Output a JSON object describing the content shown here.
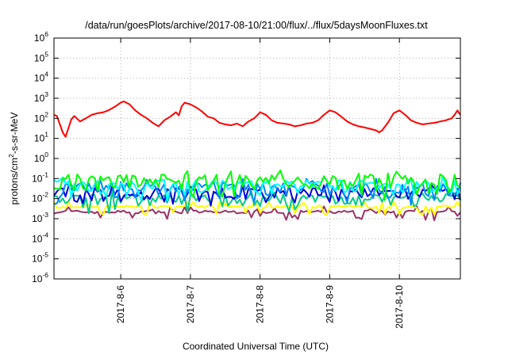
{
  "chart_data": {
    "type": "line",
    "title": "/data/run/goesPlots/archive/2017-08-10/21:00/flux/../flux/5daysMoonFluxes.txt",
    "xlabel": "Coordinated Universal Time (UTC)",
    "ylabel": {
      "pre": "protons/cm",
      "sup": "2",
      "post": "-s-sr-MeV"
    },
    "xlim": [
      "2017-08-05 01:00",
      "2017-08-10 21:00"
    ],
    "yscale": "log",
    "ylim": [
      1e-06,
      1000000.0
    ],
    "grid": true,
    "xticks": [
      {
        "label": "2017-8-6",
        "value": "2017-08-06 00:00"
      },
      {
        "label": "2017-8-7",
        "value": "2017-08-07 00:00"
      },
      {
        "label": "2017-8-8",
        "value": "2017-08-08 00:00"
      },
      {
        "label": "2017-8-9",
        "value": "2017-08-09 00:00"
      },
      {
        "label": "2017-8-10",
        "value": "2017-08-10 00:00"
      }
    ],
    "yticks": [
      {
        "base": "10",
        "exp": "-6",
        "value": 1e-06
      },
      {
        "base": "10",
        "exp": "-5",
        "value": 1e-05
      },
      {
        "base": "10",
        "exp": "-4",
        "value": 0.0001
      },
      {
        "base": "10",
        "exp": "-3",
        "value": 0.001
      },
      {
        "base": "10",
        "exp": "-2",
        "value": 0.01
      },
      {
        "base": "10",
        "exp": "-1",
        "value": 0.1
      },
      {
        "base": "10",
        "exp": "0",
        "value": 1
      },
      {
        "base": "10",
        "exp": "1",
        "value": 10
      },
      {
        "base": "10",
        "exp": "2",
        "value": 100
      },
      {
        "base": "10",
        "exp": "3",
        "value": 1000
      },
      {
        "base": "10",
        "exp": "4",
        "value": 10000
      },
      {
        "base": "10",
        "exp": "5",
        "value": 100000
      },
      {
        "base": "10",
        "exp": "6",
        "value": 1000000
      }
    ],
    "series": [
      {
        "color": "#ff0000",
        "points": [
          [
            "2017-08-05 01:00",
            150
          ],
          [
            "2017-08-05 02:00",
            130
          ],
          [
            "2017-08-05 04:00",
            20
          ],
          [
            "2017-08-05 05:00",
            12
          ],
          [
            "2017-08-05 07:00",
            90
          ],
          [
            "2017-08-05 08:00",
            130
          ],
          [
            "2017-08-05 10:00",
            70
          ],
          [
            "2017-08-05 12:00",
            100
          ],
          [
            "2017-08-05 14:00",
            150
          ],
          [
            "2017-08-05 16:00",
            180
          ],
          [
            "2017-08-05 18:00",
            200
          ],
          [
            "2017-08-05 20:00",
            260
          ],
          [
            "2017-08-05 22:00",
            380
          ],
          [
            "2017-08-06 00:00",
            600
          ],
          [
            "2017-08-06 01:00",
            700
          ],
          [
            "2017-08-06 03:00",
            500
          ],
          [
            "2017-08-06 05:00",
            250
          ],
          [
            "2017-08-06 07:00",
            150
          ],
          [
            "2017-08-06 09:00",
            100
          ],
          [
            "2017-08-06 11:00",
            60
          ],
          [
            "2017-08-06 13:00",
            40
          ],
          [
            "2017-08-06 15:00",
            80
          ],
          [
            "2017-08-06 17:00",
            120
          ],
          [
            "2017-08-06 19:00",
            200
          ],
          [
            "2017-08-06 20:00",
            140
          ],
          [
            "2017-08-06 21:00",
            400
          ],
          [
            "2017-08-06 22:00",
            600
          ],
          [
            "2017-08-07 00:00",
            500
          ],
          [
            "2017-08-07 02:00",
            350
          ],
          [
            "2017-08-07 04:00",
            220
          ],
          [
            "2017-08-07 06:00",
            120
          ],
          [
            "2017-08-07 08:00",
            100
          ],
          [
            "2017-08-07 10:00",
            60
          ],
          [
            "2017-08-07 12:00",
            50
          ],
          [
            "2017-08-07 14:00",
            45
          ],
          [
            "2017-08-07 16:00",
            55
          ],
          [
            "2017-08-07 18:00",
            40
          ],
          [
            "2017-08-07 20:00",
            70
          ],
          [
            "2017-08-07 22:00",
            100
          ],
          [
            "2017-08-08 00:00",
            200
          ],
          [
            "2017-08-08 02:00",
            150
          ],
          [
            "2017-08-08 04:00",
            80
          ],
          [
            "2017-08-08 06:00",
            60
          ],
          [
            "2017-08-08 08:00",
            55
          ],
          [
            "2017-08-08 10:00",
            50
          ],
          [
            "2017-08-08 12:00",
            40
          ],
          [
            "2017-08-08 14:00",
            45
          ],
          [
            "2017-08-08 16:00",
            55
          ],
          [
            "2017-08-08 18:00",
            60
          ],
          [
            "2017-08-08 20:00",
            80
          ],
          [
            "2017-08-08 22:00",
            150
          ],
          [
            "2017-08-09 00:00",
            250
          ],
          [
            "2017-08-09 02:00",
            200
          ],
          [
            "2017-08-09 04:00",
            120
          ],
          [
            "2017-08-09 06:00",
            70
          ],
          [
            "2017-08-09 08:00",
            50
          ],
          [
            "2017-08-09 10:00",
            40
          ],
          [
            "2017-08-09 12:00",
            35
          ],
          [
            "2017-08-09 14:00",
            30
          ],
          [
            "2017-08-09 16:00",
            25
          ],
          [
            "2017-08-09 17:00",
            20
          ],
          [
            "2017-08-09 18:00",
            25
          ],
          [
            "2017-08-09 20:00",
            60
          ],
          [
            "2017-08-09 22:00",
            180
          ],
          [
            "2017-08-10 00:00",
            250
          ],
          [
            "2017-08-10 02:00",
            150
          ],
          [
            "2017-08-10 04:00",
            80
          ],
          [
            "2017-08-10 06:00",
            60
          ],
          [
            "2017-08-10 08:00",
            50
          ],
          [
            "2017-08-10 10:00",
            55
          ],
          [
            "2017-08-10 12:00",
            60
          ],
          [
            "2017-08-10 14:00",
            70
          ],
          [
            "2017-08-10 16:00",
            80
          ],
          [
            "2017-08-10 18:00",
            100
          ],
          [
            "2017-08-10 19:00",
            150
          ],
          [
            "2017-08-10 20:00",
            250
          ],
          [
            "2017-08-10 21:00",
            150
          ]
        ]
      },
      {
        "color": "#00ff00",
        "level": 0.09,
        "spread": 0.28
      },
      {
        "color": "#00ffff",
        "level": 0.05,
        "spread": 0.25
      },
      {
        "color": "#0088ff",
        "level": 0.035,
        "spread": 0.28
      },
      {
        "color": "#0000dd",
        "level": 0.02,
        "spread": 0.22
      },
      {
        "color": "#00cc88",
        "level": 0.01,
        "spread": 0.2
      },
      {
        "color": "#ffff00",
        "level": 0.004,
        "spread": 0.05
      },
      {
        "color": "#993366",
        "level": 0.0022,
        "spread": 0.06
      }
    ]
  }
}
